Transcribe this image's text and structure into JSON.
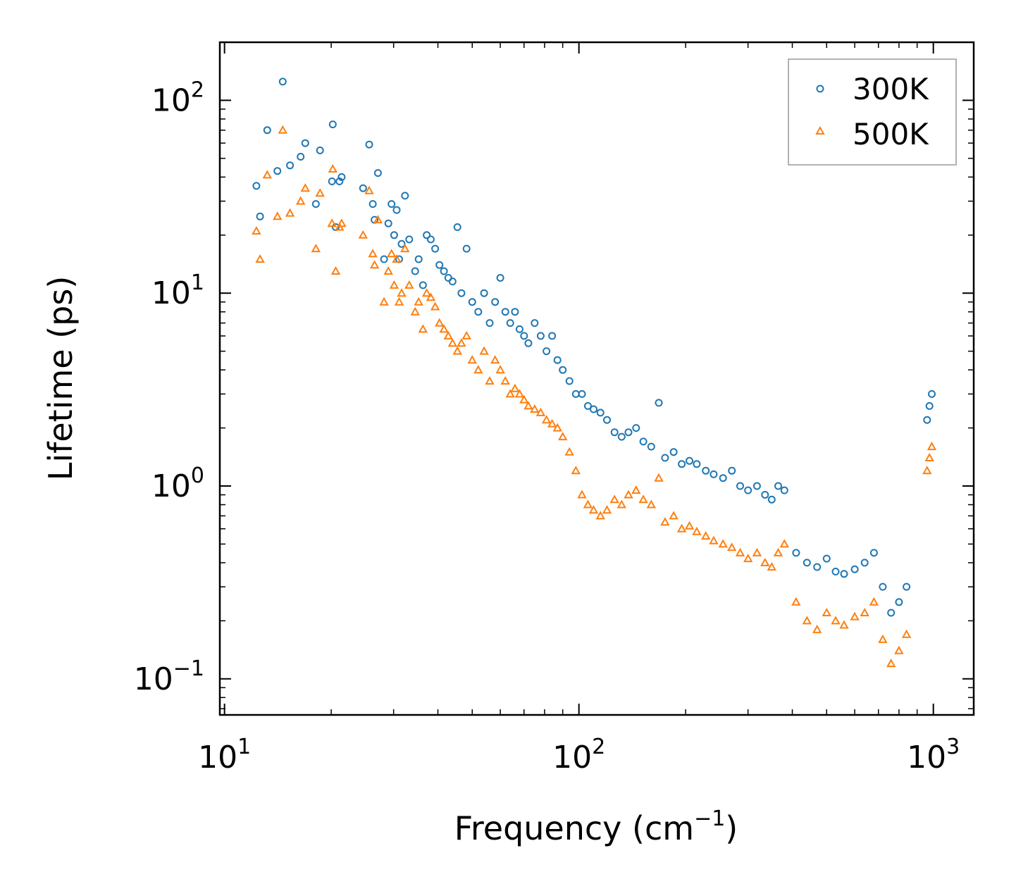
{
  "chart_data": {
    "type": "scatter",
    "title": "",
    "xlabel": "Frequency (cm",
    "xlabel_sup": "−1",
    "xlabel_close": ")",
    "ylabel": "Lifetime (ps)",
    "xscale": "log",
    "yscale": "log",
    "xlim": [
      9.7,
      1300
    ],
    "ylim": [
      0.065,
      200
    ],
    "x_ticks": [
      {
        "value": 10,
        "base": "10",
        "exp": "1"
      },
      {
        "value": 100,
        "base": "10",
        "exp": "2"
      },
      {
        "value": 1000,
        "base": "10",
        "exp": "3"
      }
    ],
    "y_ticks": [
      {
        "value": 0.1,
        "base": "10",
        "exp": "−1"
      },
      {
        "value": 1,
        "base": "10",
        "exp": "0"
      },
      {
        "value": 10,
        "base": "10",
        "exp": "1"
      },
      {
        "value": 100,
        "base": "10",
        "exp": "2"
      }
    ],
    "legend_position": "top-right",
    "series": [
      {
        "name": "300K",
        "marker": "circle",
        "color": "#1f77b4",
        "x": [
          12.3,
          12.6,
          13.2,
          14.1,
          14.6,
          15.3,
          16.4,
          16.9,
          18.1,
          18.6,
          20.1,
          20.2,
          20.6,
          21.1,
          21.4,
          24.6,
          25.6,
          26.2,
          26.5,
          27.1,
          28.2,
          29.0,
          29.6,
          30.1,
          30.6,
          31.1,
          31.6,
          32.3,
          33.2,
          34.5,
          35.3,
          36.3,
          37.2,
          38.2,
          39.3,
          40.4,
          41.6,
          42.8,
          44.0,
          45.4,
          46.6,
          48.2,
          50.0,
          52.0,
          54.0,
          56.0,
          58.0,
          60.0,
          62.0,
          64.0,
          66.0,
          68.0,
          70.0,
          72.0,
          75.0,
          78.0,
          81.0,
          84.0,
          87.0,
          90.0,
          94.0,
          98.0,
          102.0,
          106.0,
          110.0,
          115.0,
          120.0,
          126.0,
          132.0,
          138.0,
          145.0,
          152.0,
          160.0,
          168.0,
          175.0,
          185.0,
          195.0,
          205.0,
          215.0,
          228.0,
          240.0,
          255.0,
          270.0,
          285.0,
          300.0,
          318.0,
          335.0,
          350.0,
          365.0,
          380.0,
          410.0,
          440.0,
          470.0,
          500.0,
          530.0,
          560.0,
          600.0,
          640.0,
          680.0,
          720.0,
          760.0,
          800.0,
          840.0,
          960.0,
          975.0,
          990.0
        ],
        "y": [
          36,
          25,
          70,
          43,
          125,
          46,
          51,
          60,
          29,
          55,
          38,
          75,
          22,
          38,
          40,
          35,
          59,
          29,
          24,
          42,
          15,
          23,
          29,
          20,
          27,
          15,
          18,
          32,
          19,
          13,
          15,
          11,
          20,
          19,
          17,
          14,
          13,
          12,
          11.5,
          22,
          10,
          17,
          9,
          8,
          10,
          7,
          9,
          12,
          8,
          7,
          8,
          6.5,
          6,
          5.5,
          7,
          6,
          5,
          6,
          4.5,
          4,
          3.5,
          3,
          3,
          2.6,
          2.5,
          2.4,
          2.2,
          1.9,
          1.8,
          1.9,
          2,
          1.7,
          1.6,
          2.7,
          1.4,
          1.5,
          1.3,
          1.35,
          1.3,
          1.2,
          1.15,
          1.1,
          1.2,
          1.0,
          0.95,
          1.0,
          0.9,
          0.85,
          1.0,
          0.95,
          0.45,
          0.4,
          0.38,
          0.42,
          0.36,
          0.35,
          0.37,
          0.4,
          0.45,
          0.3,
          0.22,
          0.25,
          0.3,
          2.2,
          2.6,
          3.0
        ]
      },
      {
        "name": "500K",
        "marker": "triangle",
        "color": "#ff7f0e",
        "x": [
          12.3,
          12.6,
          13.2,
          14.1,
          14.6,
          15.3,
          16.4,
          16.9,
          18.1,
          18.6,
          20.1,
          20.2,
          20.6,
          21.1,
          21.4,
          24.6,
          25.6,
          26.2,
          26.5,
          27.1,
          28.2,
          29.0,
          29.6,
          30.1,
          30.6,
          31.1,
          31.6,
          32.3,
          33.2,
          34.5,
          35.3,
          36.3,
          37.2,
          38.2,
          39.3,
          40.4,
          41.6,
          42.8,
          44.0,
          45.4,
          46.6,
          48.2,
          50.0,
          52.0,
          54.0,
          56.0,
          58.0,
          60.0,
          62.0,
          64.0,
          66.0,
          68.0,
          70.0,
          72.0,
          75.0,
          78.0,
          81.0,
          84.0,
          87.0,
          90.0,
          94.0,
          98.0,
          102.0,
          106.0,
          110.0,
          115.0,
          120.0,
          126.0,
          132.0,
          138.0,
          145.0,
          152.0,
          160.0,
          168.0,
          175.0,
          185.0,
          195.0,
          205.0,
          215.0,
          228.0,
          240.0,
          255.0,
          270.0,
          285.0,
          300.0,
          318.0,
          335.0,
          350.0,
          365.0,
          380.0,
          410.0,
          440.0,
          470.0,
          500.0,
          530.0,
          560.0,
          600.0,
          640.0,
          680.0,
          720.0,
          760.0,
          800.0,
          840.0,
          960.0,
          975.0,
          990.0
        ],
        "y": [
          21,
          15,
          41,
          25,
          70,
          26,
          30,
          35,
          17,
          33,
          23,
          44,
          13,
          22,
          23,
          20,
          34,
          16,
          14,
          24,
          9,
          13,
          16,
          11,
          15,
          9,
          10,
          17,
          11,
          8,
          9,
          6.5,
          10,
          9.5,
          8.5,
          7,
          6.5,
          6,
          5.5,
          5,
          5.5,
          6,
          4.5,
          4,
          5,
          3.5,
          4.5,
          4,
          3.5,
          3,
          3.2,
          3,
          2.8,
          2.6,
          2.5,
          2.4,
          2.2,
          2.1,
          2,
          1.8,
          1.5,
          1.2,
          0.9,
          0.8,
          0.75,
          0.7,
          0.75,
          0.85,
          0.8,
          0.9,
          0.95,
          0.85,
          0.8,
          1.1,
          0.65,
          0.7,
          0.6,
          0.62,
          0.58,
          0.55,
          0.52,
          0.5,
          0.48,
          0.45,
          0.42,
          0.45,
          0.4,
          0.38,
          0.45,
          0.5,
          0.25,
          0.2,
          0.18,
          0.22,
          0.2,
          0.19,
          0.21,
          0.22,
          0.25,
          0.16,
          0.12,
          0.14,
          0.17,
          1.2,
          1.4,
          1.6
        ]
      }
    ]
  }
}
